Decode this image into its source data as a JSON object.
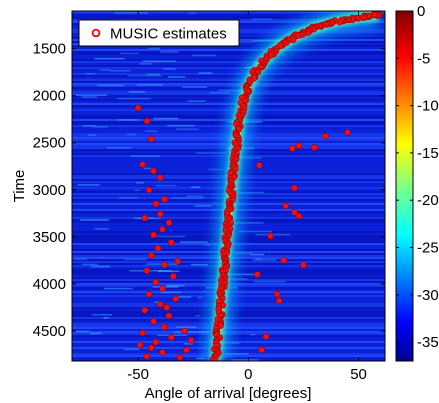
{
  "chart_data": {
    "type": "heatmap",
    "xlabel": "Angle of arrival [degrees]",
    "ylabel": "Time",
    "xlim": [
      -80,
      62
    ],
    "ylim": [
      4820,
      1100
    ],
    "y_inverted": true,
    "x_ticks": [
      -50,
      0,
      50
    ],
    "y_ticks": [
      1500,
      2000,
      2500,
      3000,
      3500,
      4000,
      4500
    ],
    "colorbar": {
      "colormap": "jet",
      "range": [
        -37,
        0
      ],
      "ticks": [
        0,
        -5,
        -10,
        -15,
        -20,
        -25,
        -30,
        -35
      ]
    },
    "legend": {
      "position": "top-left",
      "entries": [
        "MUSIC estimates"
      ]
    },
    "series": [
      {
        "name": "MUSIC estimates",
        "marker": "o",
        "color": "#ff0000",
        "main_track": [
          {
            "x": 59,
            "y": 1140
          },
          {
            "x": 50,
            "y": 1170
          },
          {
            "x": 40,
            "y": 1210
          },
          {
            "x": 30,
            "y": 1280
          },
          {
            "x": 22,
            "y": 1360
          },
          {
            "x": 15,
            "y": 1460
          },
          {
            "x": 10,
            "y": 1560
          },
          {
            "x": 6,
            "y": 1660
          },
          {
            "x": 3,
            "y": 1760
          },
          {
            "x": 0,
            "y": 1900
          },
          {
            "x": -2,
            "y": 2050
          },
          {
            "x": -4,
            "y": 2250
          },
          {
            "x": -5,
            "y": 2450
          },
          {
            "x": -6,
            "y": 2650
          },
          {
            "x": -7,
            "y": 2850
          },
          {
            "x": -8,
            "y": 3100
          },
          {
            "x": -9,
            "y": 3350
          },
          {
            "x": -10,
            "y": 3600
          },
          {
            "x": -11,
            "y": 3850
          },
          {
            "x": -12,
            "y": 4100
          },
          {
            "x": -13,
            "y": 4350
          },
          {
            "x": -14,
            "y": 4600
          },
          {
            "x": -15,
            "y": 4820
          }
        ],
        "outliers": [
          [
            -50,
            2130
          ],
          [
            -46,
            2270
          ],
          [
            -44,
            2460
          ],
          [
            -48,
            2730
          ],
          [
            -43,
            2800
          ],
          [
            -40,
            2870
          ],
          [
            -45,
            3000
          ],
          [
            -38,
            3100
          ],
          [
            -42,
            3150
          ],
          [
            -40,
            3260
          ],
          [
            -47,
            3300
          ],
          [
            -36,
            3350
          ],
          [
            -39,
            3420
          ],
          [
            -43,
            3480
          ],
          [
            -35,
            3560
          ],
          [
            -41,
            3620
          ],
          [
            -44,
            3700
          ],
          [
            -32,
            3760
          ],
          [
            -38,
            3800
          ],
          [
            -46,
            3860
          ],
          [
            -34,
            3920
          ],
          [
            -42,
            3980
          ],
          [
            -39,
            4050
          ],
          [
            -45,
            4110
          ],
          [
            -33,
            4160
          ],
          [
            -40,
            4220
          ],
          [
            -47,
            4280
          ],
          [
            -36,
            4340
          ],
          [
            -43,
            4400
          ],
          [
            -38,
            4460
          ],
          [
            -48,
            4520
          ],
          [
            -35,
            4570
          ],
          [
            -42,
            4620
          ],
          [
            -44,
            4680
          ],
          [
            -39,
            4730
          ],
          [
            -46,
            4770
          ],
          [
            -28,
            4700
          ],
          [
            -31,
            4780
          ],
          [
            -26,
            4600
          ],
          [
            -29,
            4500
          ],
          [
            -37,
            4250
          ],
          [
            -49,
            4650
          ],
          [
            20,
            2560
          ],
          [
            23,
            2530
          ],
          [
            30,
            2550
          ],
          [
            35,
            2430
          ],
          [
            45,
            2390
          ],
          [
            5,
            2740
          ],
          [
            21,
            2980
          ],
          [
            17,
            3170
          ],
          [
            21,
            3240
          ],
          [
            23,
            3280
          ],
          [
            10,
            3490
          ],
          [
            16,
            3750
          ],
          [
            25,
            3800
          ],
          [
            4,
            3900
          ],
          [
            13,
            4110
          ],
          [
            14,
            4180
          ],
          [
            6,
            4700
          ],
          [
            8,
            4560
          ]
        ]
      }
    ]
  }
}
